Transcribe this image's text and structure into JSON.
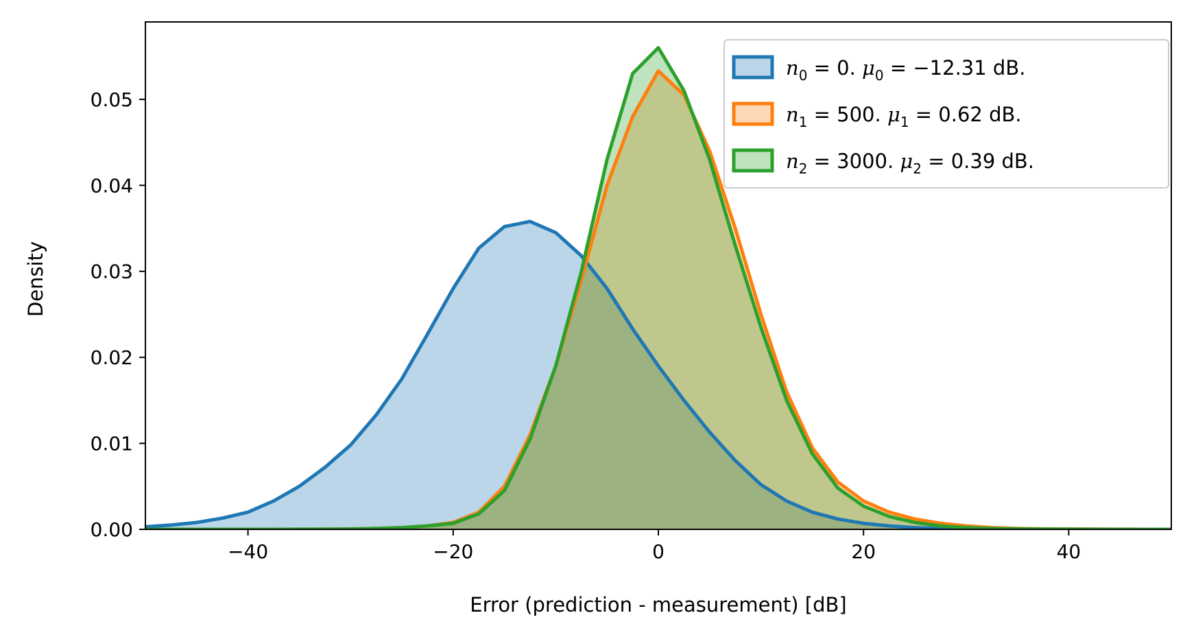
{
  "chart_data": {
    "type": "area",
    "title": "",
    "xlabel": "Error (prediction - measurement) [dB]",
    "ylabel": "Density",
    "xlim": [
      -50,
      50
    ],
    "ylim": [
      0,
      0.059
    ],
    "x_ticks": [
      -40,
      -20,
      0,
      20,
      40
    ],
    "x_tick_labels": [
      "−40",
      "−20",
      "0",
      "20",
      "40"
    ],
    "y_ticks": [
      0,
      0.01,
      0.02,
      0.03,
      0.04,
      0.05
    ],
    "y_tick_labels": [
      "0.00",
      "0.01",
      "0.02",
      "0.03",
      "0.04",
      "0.05"
    ],
    "grid": false,
    "legend_position": "top-right",
    "colors": {
      "series0": "#1f77b4",
      "series1": "#ff7f0e",
      "series2": "#2ca02c"
    },
    "x": [
      -50,
      -47.5,
      -45,
      -42.5,
      -40,
      -37.5,
      -35,
      -32.5,
      -30,
      -27.5,
      -25,
      -22.5,
      -20,
      -17.5,
      -15,
      -12.5,
      -10,
      -7.5,
      -5,
      -2.5,
      0,
      2.5,
      5,
      7.5,
      10,
      12.5,
      15,
      17.5,
      20,
      22.5,
      25,
      27.5,
      30,
      32.5,
      35,
      37.5,
      40,
      42.5,
      45,
      47.5,
      50
    ],
    "series": [
      {
        "legend": {
          "n_sym": "n",
          "n_sub": "0",
          "n_val": "= 0.",
          "mu_sym": "μ",
          "mu_sub": "0",
          "mu_val": "= −12.31 dB."
        },
        "values": [
          0.0003,
          0.0005,
          0.0008,
          0.0013,
          0.002,
          0.0033,
          0.005,
          0.0072,
          0.0098,
          0.0133,
          0.0175,
          0.0227,
          0.028,
          0.0327,
          0.0352,
          0.0358,
          0.0345,
          0.0318,
          0.028,
          0.0233,
          0.019,
          0.015,
          0.0113,
          0.008,
          0.0052,
          0.0033,
          0.002,
          0.0012,
          0.0007,
          0.0004,
          0.0002,
          0.0001,
          0.0001,
          5e-05,
          3e-05,
          2e-05,
          1e-05,
          0,
          0,
          0,
          0
        ]
      },
      {
        "legend": {
          "n_sym": "n",
          "n_sub": "1",
          "n_val": "= 500.",
          "mu_sym": "μ",
          "mu_sub": "1",
          "mu_val": "= 0.62 dB."
        },
        "values": [
          0,
          0,
          0,
          0,
          0,
          0,
          1e-05,
          2e-05,
          5e-05,
          0.0001,
          0.0002,
          0.0004,
          0.0008,
          0.002,
          0.005,
          0.011,
          0.019,
          0.029,
          0.04,
          0.048,
          0.0533,
          0.0505,
          0.044,
          0.035,
          0.025,
          0.016,
          0.0095,
          0.0055,
          0.0033,
          0.002,
          0.0012,
          0.0007,
          0.0004,
          0.0002,
          0.0001,
          5e-05,
          3e-05,
          2e-05,
          1e-05,
          0,
          0
        ]
      },
      {
        "legend": {
          "n_sym": "n",
          "n_sub": "2",
          "n_val": "= 3000.",
          "mu_sym": "μ",
          "mu_sub": "2",
          "mu_val": "= 0.39 dB."
        },
        "values": [
          0,
          0,
          0,
          0,
          0,
          0,
          1e-05,
          2e-05,
          4e-05,
          0.0001,
          0.0002,
          0.0004,
          0.0007,
          0.0018,
          0.0045,
          0.0105,
          0.019,
          0.03,
          0.043,
          0.053,
          0.056,
          0.051,
          0.043,
          0.033,
          0.0235,
          0.015,
          0.0088,
          0.0048,
          0.0027,
          0.0015,
          0.0008,
          0.0004,
          0.0002,
          0.0001,
          5e-05,
          3e-05,
          2e-05,
          1e-05,
          0,
          0,
          0
        ]
      }
    ]
  }
}
